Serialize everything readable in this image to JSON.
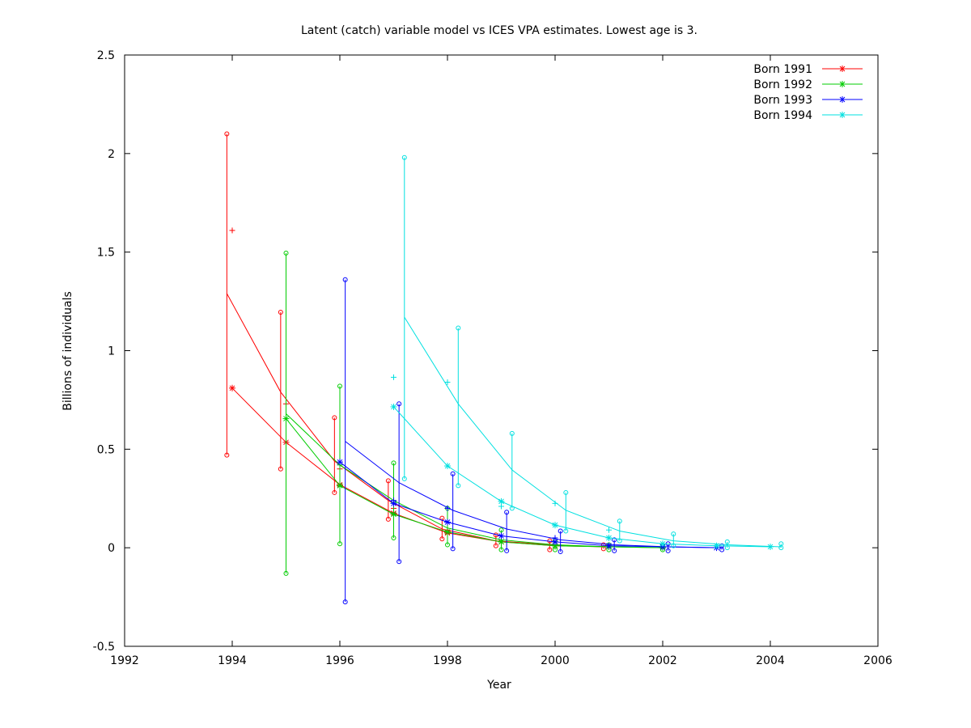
{
  "chart_data": {
    "type": "line",
    "title": "Latent (catch) variable model vs ICES VPA estimates. Lowest age is 3.",
    "xlabel": "Year",
    "ylabel": "Billions of individuals",
    "xlim": [
      1992,
      2006
    ],
    "ylim": [
      -0.5,
      2.5
    ],
    "xticks": [
      "1992",
      "1994",
      "1996",
      "1998",
      "2000",
      "2002",
      "2004",
      "2006"
    ],
    "yticks": [
      "-0.5",
      "0",
      "0.5",
      "1",
      "1.5",
      "2",
      "2.5"
    ],
    "grid": false,
    "legend_position": "top-right",
    "series": [
      {
        "name": "Born 1991",
        "color": "#ff0000",
        "vpa_x": [
          1994,
          1995,
          1996,
          1997,
          1998,
          1999,
          2000,
          2001
        ],
        "vpa": [
          0.81,
          0.535,
          0.32,
          0.175,
          0.075,
          0.03,
          0.01,
          0.005
        ],
        "model_x": [
          1993.9,
          1994.9,
          1995.9,
          1996.9,
          1997.9,
          1998.9,
          1999.9,
          2000.9
        ],
        "model": [
          1.29,
          0.79,
          0.44,
          0.24,
          0.095,
          0.035,
          0.015,
          0.005
        ],
        "ci_low": [
          0.47,
          0.4,
          0.28,
          0.145,
          0.045,
          0.01,
          -0.01,
          -0.005
        ],
        "ci_high": [
          2.1,
          1.195,
          0.66,
          0.34,
          0.15,
          0.065,
          0.035,
          0.015
        ],
        "obs_x": [
          1994,
          1995,
          1996,
          1997,
          1998
        ],
        "obs": [
          1.61,
          0.73,
          0.4,
          0.2,
          0.09
        ]
      },
      {
        "name": "Born 1992",
        "color": "#00cc00",
        "vpa_x": [
          1995,
          1996,
          1997,
          1998,
          1999,
          2000,
          2001,
          2002
        ],
        "vpa": [
          0.655,
          0.315,
          0.17,
          0.08,
          0.03,
          0.01,
          0.005,
          0.0
        ],
        "model_x": [
          1995,
          1996,
          1997,
          1998,
          1999,
          2000,
          2001,
          2002
        ],
        "model": [
          0.68,
          0.42,
          0.24,
          0.1,
          0.04,
          0.015,
          0.005,
          0.0
        ],
        "ci_low": [
          -0.13,
          0.02,
          0.05,
          0.015,
          -0.01,
          -0.01,
          -0.01,
          -0.01
        ],
        "ci_high": [
          1.495,
          0.82,
          0.43,
          0.2,
          0.09,
          0.035,
          0.015,
          0.01
        ],
        "obs_x": [
          1996,
          1997,
          1998
        ],
        "obs": [
          0.42,
          0.23,
          0.2
        ]
      },
      {
        "name": "Born 1993",
        "color": "#0000ff",
        "vpa_x": [
          1996,
          1997,
          1998,
          1999,
          2000,
          2001,
          2002,
          2003
        ],
        "vpa": [
          0.435,
          0.225,
          0.13,
          0.06,
          0.03,
          0.01,
          0.005,
          0.0
        ],
        "model_x": [
          1996.1,
          1997.1,
          1998.1,
          1999.1,
          2000.1,
          2001.1,
          2002.1,
          2003.1
        ],
        "model": [
          0.54,
          0.33,
          0.19,
          0.095,
          0.04,
          0.015,
          0.005,
          0.0
        ],
        "ci_low": [
          -0.275,
          -0.07,
          -0.005,
          -0.015,
          -0.02,
          -0.015,
          -0.015,
          -0.01
        ],
        "ci_high": [
          1.36,
          0.73,
          0.375,
          0.18,
          0.085,
          0.04,
          0.02,
          0.01
        ],
        "obs_x": [
          1997,
          1998,
          2000
        ],
        "obs": [
          0.24,
          0.2,
          0.05
        ]
      },
      {
        "name": "Born 1994",
        "color": "#00e0e0",
        "vpa_x": [
          1997,
          1998,
          1999,
          2000,
          2001,
          2002,
          2003,
          2004
        ],
        "vpa": [
          0.715,
          0.415,
          0.235,
          0.115,
          0.05,
          0.02,
          0.01,
          0.005
        ],
        "model_x": [
          1997.2,
          1998.2,
          1999.2,
          2000.2,
          2001.2,
          2002.2,
          2003.2,
          2004.2
        ],
        "model": [
          1.17,
          0.73,
          0.395,
          0.19,
          0.085,
          0.035,
          0.015,
          0.005
        ],
        "ci_low": [
          0.35,
          0.315,
          0.2,
          0.085,
          0.035,
          0.01,
          0.0,
          0.0
        ],
        "ci_high": [
          1.98,
          1.115,
          0.58,
          0.28,
          0.135,
          0.07,
          0.03,
          0.02
        ],
        "obs_x": [
          1997,
          1998,
          1999,
          2000,
          2001
        ],
        "obs": [
          0.865,
          0.84,
          0.21,
          0.225,
          0.09
        ]
      }
    ]
  }
}
